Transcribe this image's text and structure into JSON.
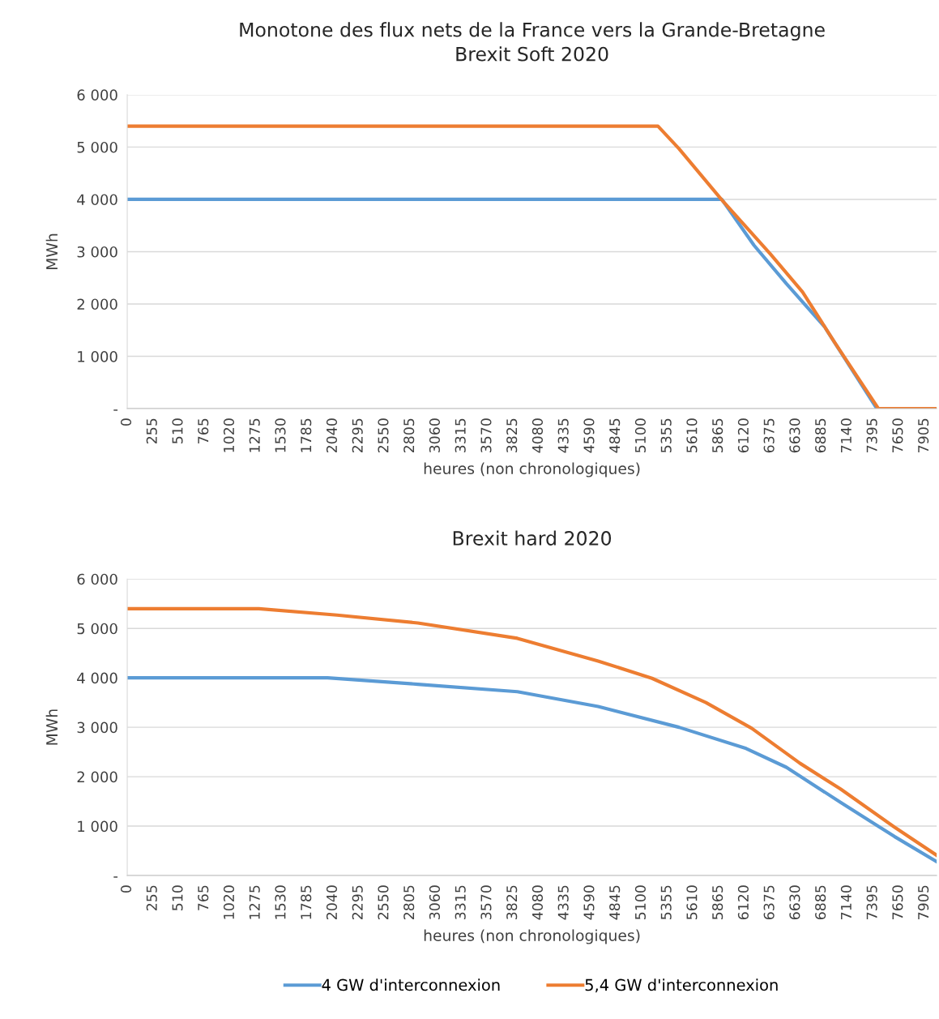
{
  "chart_data": [
    {
      "type": "line",
      "title": "Monotone des flux nets de la France vers la Grande-Bretagne",
      "subtitle": "Brexit Soft 2020",
      "xlabel": "heures (non chronologiques)",
      "ylabel": "MWh",
      "series": [
        {
          "color": "#5b9bd5",
          "x": [
            0,
            5895,
            6215,
            6535,
            6912,
            7432
          ],
          "values": [
            4000,
            4000,
            3120,
            2390,
            1570,
            0
          ]
        },
        {
          "color": "#ed7d31",
          "x": [
            0,
            5262,
            5470,
            5895,
            6375,
            6695,
            7016,
            7448,
            8025
          ],
          "values": [
            5400,
            5400,
            4970,
            3990,
            2960,
            2230,
            1260,
            0,
            0
          ]
        }
      ],
      "xlim": [
        0,
        8025
      ],
      "xticks": [
        0,
        255,
        510,
        765,
        1020,
        1275,
        1530,
        1785,
        2040,
        2295,
        2550,
        2805,
        3060,
        3315,
        3570,
        3825,
        4080,
        4335,
        4590,
        4845,
        5100,
        5355,
        5610,
        5865,
        6120,
        6375,
        6630,
        6885,
        7140,
        7395,
        7650,
        7905
      ],
      "ylim": [
        0,
        6000
      ],
      "yticks": [
        {
          "value": 0,
          "label": "-"
        },
        {
          "value": 1000,
          "label": "1 000"
        },
        {
          "value": 2000,
          "label": "2 000"
        },
        {
          "value": 3000,
          "label": "3 000"
        },
        {
          "value": 4000,
          "label": "4 000"
        },
        {
          "value": 5000,
          "label": "5 000"
        },
        {
          "value": 6000,
          "label": "6 000"
        }
      ],
      "grid": "y",
      "line_style": "solid"
    },
    {
      "type": "line",
      "title": "Brexit hard 2020",
      "xlabel": "heures (non chronologiques)",
      "ylabel": "MWh",
      "series": [
        {
          "name": "4 GW d'interconnexion",
          "color": "#5b9bd5",
          "x": [
            0,
            1986,
            2881,
            3868,
            4669,
            5470,
            6136,
            6535,
            7072,
            7606,
            8025
          ],
          "values": [
            4000,
            4000,
            3870,
            3720,
            3420,
            3000,
            2570,
            2190,
            1480,
            790,
            280
          ]
        },
        {
          "name": "5,4 GW d'interconnexion",
          "color": "#ed7d31",
          "x": [
            0,
            1305,
            2080,
            2881,
            3868,
            4669,
            5203,
            5737,
            6191,
            6671,
            7072,
            7606,
            8025
          ],
          "values": [
            5400,
            5400,
            5270,
            5110,
            4800,
            4340,
            3990,
            3500,
            2980,
            2270,
            1750,
            980,
            410
          ]
        }
      ],
      "xlim": [
        0,
        8025
      ],
      "xticks": [
        0,
        255,
        510,
        765,
        1020,
        1275,
        1530,
        1785,
        2040,
        2295,
        2550,
        2805,
        3060,
        3315,
        3570,
        3825,
        4080,
        4335,
        4590,
        4845,
        5100,
        5355,
        5610,
        5865,
        6120,
        6375,
        6630,
        6885,
        7140,
        7395,
        7650,
        7905
      ],
      "ylim": [
        0,
        6000
      ],
      "yticks": [
        {
          "value": 0,
          "label": "-"
        },
        {
          "value": 1000,
          "label": "1 000"
        },
        {
          "value": 2000,
          "label": "2 000"
        },
        {
          "value": 3000,
          "label": "3 000"
        },
        {
          "value": 4000,
          "label": "4 000"
        },
        {
          "value": 5000,
          "label": "5 000"
        },
        {
          "value": 6000,
          "label": "6 000"
        }
      ],
      "grid": "y",
      "line_style": "solid",
      "legend": "bottom"
    }
  ]
}
